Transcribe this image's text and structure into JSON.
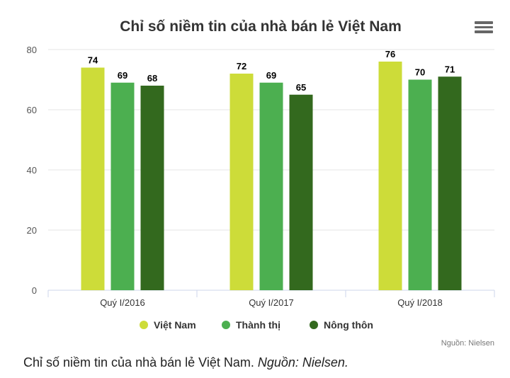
{
  "chart_data": {
    "type": "bar",
    "title": "Chỉ số niềm tin của nhà bán lẻ Việt Nam",
    "categories": [
      "Quý I/2016",
      "Quý I/2017",
      "Quý I/2018"
    ],
    "series": [
      {
        "name": "Việt Nam",
        "color": "#cddc39",
        "values": [
          74,
          72,
          76
        ]
      },
      {
        "name": "Thành thị",
        "color": "#4caf50",
        "values": [
          69,
          69,
          70
        ]
      },
      {
        "name": "Nông thôn",
        "color": "#33691e",
        "values": [
          68,
          65,
          71
        ]
      }
    ],
    "ylim": [
      0,
      80
    ],
    "yticks": [
      0,
      20,
      40,
      60,
      80
    ],
    "grid": true,
    "legend_position": "bottom-center",
    "credits": "Nguồn: Nielsen"
  },
  "menu_icon": "hamburger-menu-icon",
  "caption": {
    "text": "Chỉ số niềm tin của nhà bán lẻ Việt Nam. ",
    "source": "Nguồn: Nielsen."
  }
}
